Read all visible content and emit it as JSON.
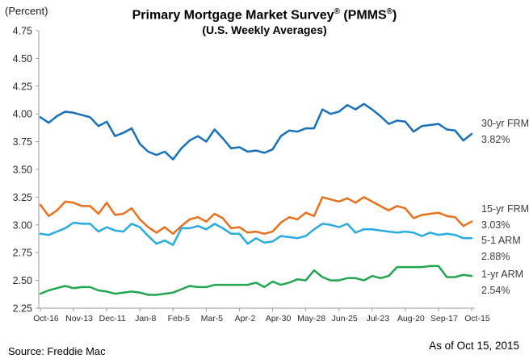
{
  "header": {
    "title_part1": "Primary Mortgage Market Survey",
    "title_reg1": "®",
    "title_part2": " (PMMS",
    "title_reg2": "®",
    "title_part3": ")",
    "subtitle": "(U.S. Weekly Averages)",
    "y_axis_unit": "(Percent)"
  },
  "footer": {
    "source": "Source: Freddie Mac",
    "as_of": "As of Oct 15, 2015"
  },
  "chart_data": {
    "type": "line",
    "title": "Primary Mortgage Market Survey® (PMMS®)",
    "subtitle": "(U.S. Weekly Averages)",
    "ylabel": "(Percent)",
    "ylim": [
      2.25,
      4.75
    ],
    "y_tick_step": 0.25,
    "y_tick_labels": [
      "4.75",
      "4.50",
      "4.25",
      "4.00",
      "3.75",
      "3.50",
      "3.25",
      "3.00",
      "2.75",
      "2.50",
      "2.25"
    ],
    "x_tick_labels": [
      "Oct-16",
      "Nov-13",
      "Dec-11",
      "Jan-8",
      "Feb-5",
      "Mar-5",
      "Apr-2",
      "Apr-30",
      "May-28",
      "Jun-25",
      "Jul-23",
      "Aug-20",
      "Sep-17",
      "Oct-15"
    ],
    "x_tick_every_n_points": 4,
    "points_per_series": 53,
    "grid": false,
    "legend_position": "right of line ends",
    "axis_color": "#9b9b9b",
    "text_color": "#3d3d3d",
    "series": [
      {
        "name": "30-yr FRM",
        "end_value_label": "3.82%",
        "color": "#1670bc",
        "values": [
          3.97,
          3.92,
          3.98,
          4.02,
          4.01,
          3.99,
          3.97,
          3.89,
          3.93,
          3.8,
          3.83,
          3.87,
          3.73,
          3.66,
          3.63,
          3.66,
          3.59,
          3.69,
          3.76,
          3.8,
          3.75,
          3.86,
          3.78,
          3.69,
          3.7,
          3.66,
          3.67,
          3.65,
          3.68,
          3.8,
          3.85,
          3.84,
          3.87,
          3.87,
          4.04,
          4.0,
          4.02,
          4.08,
          4.04,
          4.09,
          4.04,
          3.98,
          3.91,
          3.94,
          3.93,
          3.84,
          3.89,
          3.9,
          3.91,
          3.86,
          3.85,
          3.76,
          3.82
        ]
      },
      {
        "name": "15-yr FRM",
        "end_value_label": "3.03%",
        "color": "#e8701d",
        "values": [
          3.18,
          3.08,
          3.13,
          3.21,
          3.2,
          3.17,
          3.17,
          3.1,
          3.2,
          3.09,
          3.1,
          3.15,
          3.05,
          2.98,
          2.93,
          2.98,
          2.92,
          2.99,
          3.05,
          3.07,
          3.03,
          3.1,
          3.06,
          2.97,
          2.98,
          2.93,
          2.94,
          2.92,
          2.94,
          3.02,
          3.07,
          3.05,
          3.11,
          3.08,
          3.25,
          3.23,
          3.21,
          3.24,
          3.2,
          3.25,
          3.21,
          3.17,
          3.13,
          3.17,
          3.15,
          3.06,
          3.09,
          3.1,
          3.11,
          3.08,
          3.07,
          2.99,
          3.03
        ]
      },
      {
        "name": "5-1 ARM",
        "end_value_label": "2.88%",
        "color": "#29abe2",
        "values": [
          2.92,
          2.91,
          2.94,
          2.97,
          3.02,
          3.01,
          3.01,
          2.94,
          2.98,
          2.95,
          2.94,
          3.01,
          2.98,
          2.9,
          2.83,
          2.86,
          2.82,
          2.97,
          2.97,
          2.99,
          2.96,
          3.01,
          2.97,
          2.92,
          2.92,
          2.83,
          2.88,
          2.84,
          2.85,
          2.9,
          2.89,
          2.88,
          2.9,
          2.96,
          3.01,
          3.0,
          2.98,
          3.01,
          2.93,
          2.96,
          2.96,
          2.95,
          2.94,
          2.93,
          2.94,
          2.93,
          2.9,
          2.93,
          2.91,
          2.92,
          2.91,
          2.88,
          2.88
        ]
      },
      {
        "name": "1-yr ARM",
        "end_value_label": "2.54%",
        "color": "#21a64f",
        "values": [
          2.38,
          2.41,
          2.43,
          2.45,
          2.43,
          2.44,
          2.44,
          2.41,
          2.4,
          2.38,
          2.39,
          2.4,
          2.39,
          2.37,
          2.37,
          2.38,
          2.39,
          2.42,
          2.45,
          2.44,
          2.44,
          2.46,
          2.46,
          2.46,
          2.46,
          2.46,
          2.48,
          2.44,
          2.49,
          2.46,
          2.48,
          2.51,
          2.5,
          2.59,
          2.53,
          2.5,
          2.5,
          2.52,
          2.52,
          2.5,
          2.54,
          2.52,
          2.54,
          2.62,
          2.62,
          2.62,
          2.62,
          2.63,
          2.63,
          2.53,
          2.53,
          2.55,
          2.54
        ]
      }
    ]
  }
}
